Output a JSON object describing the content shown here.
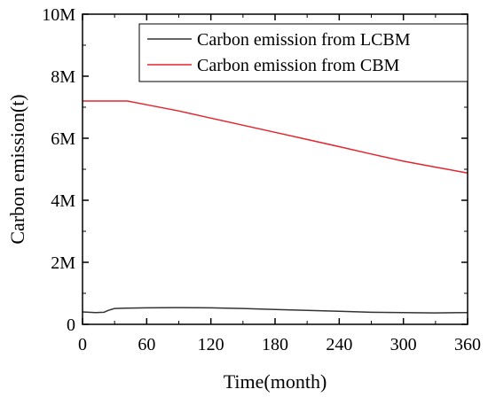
{
  "chart_data": {
    "type": "line",
    "title": "",
    "xlabel": "Time(month)",
    "ylabel": "Carbon emission(t)",
    "xlim": [
      0,
      360
    ],
    "ylim": [
      0,
      10000000
    ],
    "x_ticks": [
      0,
      60,
      120,
      180,
      240,
      300,
      360
    ],
    "x_tick_labels": [
      "0",
      "60",
      "120",
      "180",
      "240",
      "300",
      "360"
    ],
    "y_ticks": [
      0,
      2000000,
      4000000,
      6000000,
      8000000,
      10000000
    ],
    "y_tick_labels": [
      "0",
      "2M",
      "4M",
      "6M",
      "8M",
      "10M"
    ],
    "grid": false,
    "legend_position": "top-right",
    "series": [
      {
        "name": "Carbon emission from LCBM",
        "color": "#333333",
        "x": [
          0,
          12,
          20,
          24,
          30,
          40,
          60,
          90,
          120,
          150,
          180,
          210,
          240,
          270,
          300,
          330,
          360
        ],
        "y": [
          400000,
          380000,
          390000,
          450000,
          510000,
          520000,
          530000,
          540000,
          530000,
          510000,
          480000,
          450000,
          420000,
          390000,
          380000,
          370000,
          380000
        ]
      },
      {
        "name": "Carbon emission from CBM",
        "color": "#e3262e",
        "x": [
          0,
          42,
          60,
          90,
          120,
          150,
          180,
          210,
          240,
          270,
          300,
          330,
          360
        ],
        "y": [
          7200000,
          7200000,
          7080000,
          6880000,
          6650000,
          6420000,
          6190000,
          5960000,
          5730000,
          5490000,
          5260000,
          5070000,
          4880000
        ]
      }
    ]
  }
}
